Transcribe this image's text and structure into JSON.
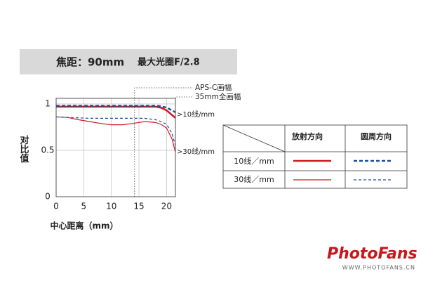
{
  "chart_data": {
    "type": "line",
    "header": [
      "焦距：90mm",
      "最大光圈F/2.8"
    ],
    "x_label": "中心距离（mm）",
    "y_label": "对比值",
    "x": [
      0,
      2,
      4,
      6,
      8,
      10,
      12,
      14,
      16,
      18,
      19,
      20,
      21,
      21.6
    ],
    "series": [
      {
        "color": "#d0191f",
        "width": 2.5,
        "dash": "",
        "values": [
          0.97,
          0.97,
          0.97,
          0.97,
          0.97,
          0.97,
          0.97,
          0.97,
          0.97,
          0.97,
          0.96,
          0.93,
          0.88,
          0.85
        ]
      },
      {
        "color": "#1a4f9c",
        "width": 2.5,
        "dash": "5,3",
        "values": [
          0.98,
          0.98,
          0.98,
          0.98,
          0.98,
          0.98,
          0.98,
          0.98,
          0.98,
          0.98,
          0.975,
          0.96,
          0.93,
          0.91
        ]
      },
      {
        "color": "#d0191f",
        "width": 1.2,
        "dash": "",
        "values": [
          0.86,
          0.855,
          0.83,
          0.81,
          0.79,
          0.775,
          0.775,
          0.79,
          0.81,
          0.8,
          0.78,
          0.74,
          0.62,
          0.48
        ]
      },
      {
        "color": "#1a4f9c",
        "width": 1.2,
        "dash": "4,3",
        "values": [
          0.86,
          0.855,
          0.85,
          0.845,
          0.845,
          0.845,
          0.845,
          0.845,
          0.845,
          0.83,
          0.81,
          0.78,
          0.68,
          0.55
        ]
      }
    ],
    "xlim": [
      0,
      21.6
    ],
    "ylim": [
      0,
      1.06
    ],
    "xticks": [
      0,
      5,
      10,
      15,
      20
    ],
    "yticks": [
      0,
      0.5,
      1
    ],
    "grid": true,
    "markers": [
      {
        "x": 14.2,
        "label": "APS-C画幅"
      },
      {
        "x": 21.6,
        "label": "35mm全画幅"
      }
    ],
    "annotations": [
      ">10线/mm",
      ">30线/mm"
    ],
    "legend": {
      "columns": [
        "放射方向",
        "圆周方向"
      ],
      "rows": [
        "10线／mm",
        "30线／mm"
      ]
    },
    "watermark": [
      "PhotoFans",
      "WWW.PHOTOFANS.CN"
    ]
  }
}
